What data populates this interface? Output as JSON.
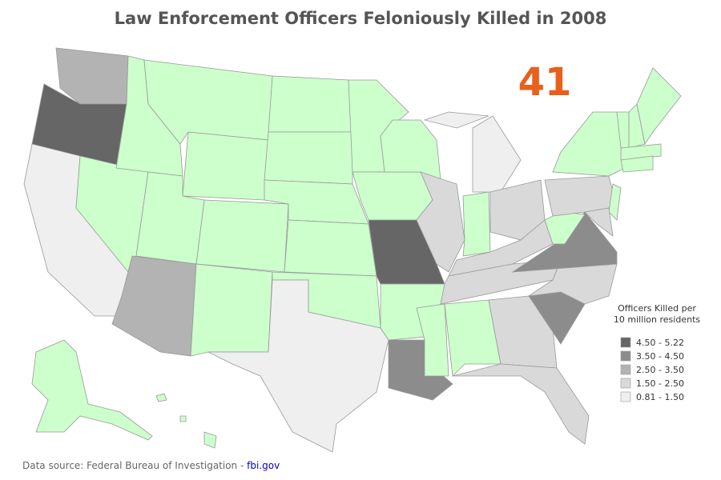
{
  "header": {
    "title": "Law Enforcement Officers Feloniously Killed in 2008",
    "count": "41"
  },
  "legend": {
    "title_lines": [
      "Officers Killed per",
      "10 million residents"
    ],
    "items": [
      {
        "label": "4.50 - 5.22",
        "color": "#666666"
      },
      {
        "label": "3.50 - 4.50",
        "color": "#8c8c8c"
      },
      {
        "label": "2.50 - 3.50",
        "color": "#b3b3b3"
      },
      {
        "label": "1.50 - 2.50",
        "color": "#d9d9d9"
      },
      {
        "label": "0.81 - 1.50",
        "color": "#efefef"
      }
    ]
  },
  "footer": {
    "source": "Data source: Federal Bureau of Investigation -",
    "link": "fbi.gov"
  }
}
